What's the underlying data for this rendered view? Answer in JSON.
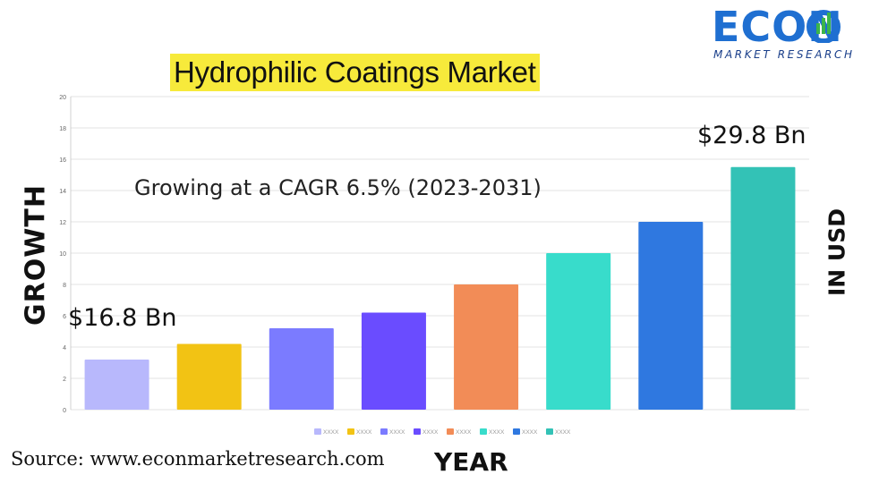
{
  "brand": {
    "logo_text": "ECON",
    "logo_subtitle": "MARKET RESEARCH",
    "colors": {
      "logo_blue": "#1f6fd1",
      "logo_green": "#3bb54a",
      "logo_navy": "#1a3f8a"
    }
  },
  "title": "Hydrophilic Coatings Market",
  "title_highlight_color": "#f7ea3b",
  "subtitle": "Growing at a CAGR 6.5% (2023-2031)",
  "axis_left_label": "GROWTH",
  "axis_right_label": "IN USD",
  "axis_bottom_label": "YEAR",
  "start_value_label": "$16.8 Bn",
  "end_value_label": "$29.8 Bn",
  "source": "Source: www.econmarketresearch.com",
  "chart_data": {
    "type": "bar",
    "categories": [
      "XXXX",
      "XXXX",
      "XXXX",
      "XXXX",
      "XXXX",
      "XXXX",
      "XXXX",
      "XXXX"
    ],
    "values": [
      3.2,
      4.2,
      5.2,
      6.2,
      8,
      10,
      12,
      15.5
    ],
    "colors": [
      "#b8b8fc",
      "#f2c314",
      "#7b7bff",
      "#6a4cff",
      "#f28c57",
      "#38dccb",
      "#2f78e0",
      "#33c2b6"
    ],
    "ylim": [
      0,
      20
    ],
    "yticks": [
      0,
      2,
      4,
      6,
      8,
      10,
      12,
      14,
      16,
      18,
      20
    ],
    "grid": true,
    "legend_position": "bottom-center"
  }
}
